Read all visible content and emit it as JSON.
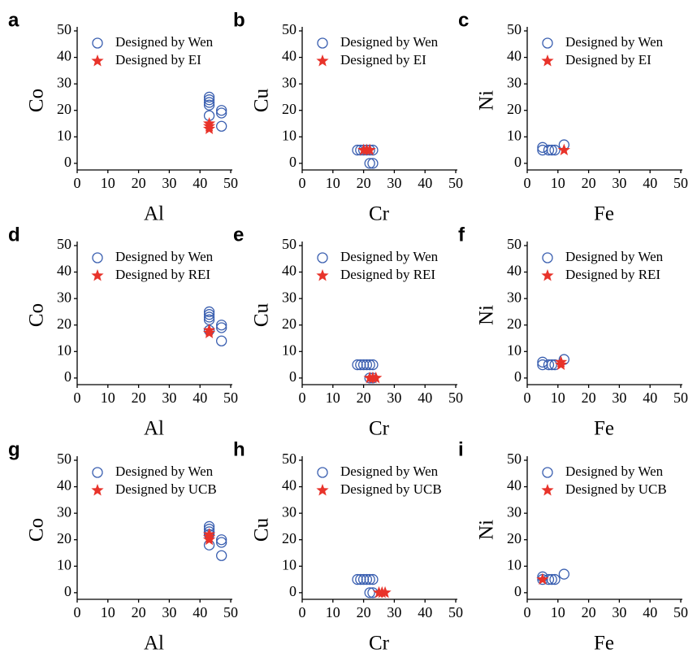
{
  "chart_data": [
    {
      "type": "scatter",
      "panel": "a",
      "xlabel": "Al",
      "ylabel": "Co",
      "xlim": [
        0,
        50
      ],
      "ylim": [
        -2.5,
        50
      ],
      "xticks": [
        0,
        10,
        20,
        30,
        40,
        50
      ],
      "yticks": [
        0,
        10,
        20,
        30,
        40,
        50
      ],
      "series": [
        {
          "name": "Designed by Wen",
          "color": "#3a5fb0",
          "marker": "circle",
          "x": [
            43,
            43,
            43,
            43,
            43,
            47,
            47,
            47
          ],
          "y": [
            25,
            24,
            23,
            22,
            18,
            20,
            19,
            14
          ]
        },
        {
          "name": "Designed by EI",
          "color": "#e8332a",
          "marker": "star",
          "x": [
            43,
            43,
            43
          ],
          "y": [
            15,
            14,
            13
          ]
        }
      ]
    },
    {
      "type": "scatter",
      "panel": "b",
      "xlabel": "Cr",
      "ylabel": "Cu",
      "xlim": [
        0,
        50
      ],
      "ylim": [
        -2.5,
        50
      ],
      "xticks": [
        0,
        10,
        20,
        30,
        40,
        50
      ],
      "yticks": [
        0,
        10,
        20,
        30,
        40,
        50
      ],
      "series": [
        {
          "name": "Designed by Wen",
          "color": "#3a5fb0",
          "marker": "circle",
          "x": [
            18,
            19,
            20,
            21,
            22,
            23,
            22,
            23
          ],
          "y": [
            5,
            5,
            5,
            5,
            5,
            5,
            0,
            0
          ]
        },
        {
          "name": "Designed by EI",
          "color": "#e8332a",
          "marker": "star",
          "x": [
            20,
            21,
            22
          ],
          "y": [
            5,
            5,
            5
          ]
        }
      ]
    },
    {
      "type": "scatter",
      "panel": "c",
      "xlabel": "Fe",
      "ylabel": "Ni",
      "xlim": [
        0,
        50
      ],
      "ylim": [
        -2.5,
        50
      ],
      "xticks": [
        0,
        10,
        20,
        30,
        40,
        50
      ],
      "yticks": [
        0,
        10,
        20,
        30,
        40,
        50
      ],
      "series": [
        {
          "name": "Designed by Wen",
          "color": "#3a5fb0",
          "marker": "circle",
          "x": [
            5,
            5,
            7,
            8,
            9,
            12
          ],
          "y": [
            6,
            5,
            5,
            5,
            5,
            7
          ]
        },
        {
          "name": "Designed by EI",
          "color": "#e8332a",
          "marker": "star",
          "x": [
            12
          ],
          "y": [
            5
          ]
        }
      ]
    },
    {
      "type": "scatter",
      "panel": "d",
      "xlabel": "Al",
      "ylabel": "Co",
      "xlim": [
        0,
        50
      ],
      "ylim": [
        -2.5,
        50
      ],
      "xticks": [
        0,
        10,
        20,
        30,
        40,
        50
      ],
      "yticks": [
        0,
        10,
        20,
        30,
        40,
        50
      ],
      "series": [
        {
          "name": "Designed by Wen",
          "color": "#3a5fb0",
          "marker": "circle",
          "x": [
            43,
            43,
            43,
            43,
            43,
            47,
            47,
            47
          ],
          "y": [
            25,
            24,
            23,
            22,
            18,
            20,
            19,
            14
          ]
        },
        {
          "name": "Designed by REI",
          "color": "#e8332a",
          "marker": "star",
          "x": [
            43,
            43
          ],
          "y": [
            17,
            18
          ]
        }
      ]
    },
    {
      "type": "scatter",
      "panel": "e",
      "xlabel": "Cr",
      "ylabel": "Cu",
      "xlim": [
        0,
        50
      ],
      "ylim": [
        -2.5,
        50
      ],
      "xticks": [
        0,
        10,
        20,
        30,
        40,
        50
      ],
      "yticks": [
        0,
        10,
        20,
        30,
        40,
        50
      ],
      "series": [
        {
          "name": "Designed by Wen",
          "color": "#3a5fb0",
          "marker": "circle",
          "x": [
            18,
            19,
            20,
            21,
            22,
            23,
            22,
            23
          ],
          "y": [
            5,
            5,
            5,
            5,
            5,
            5,
            0,
            0
          ]
        },
        {
          "name": "Designed by REI",
          "color": "#e8332a",
          "marker": "star",
          "x": [
            22,
            23,
            24
          ],
          "y": [
            0,
            0,
            0
          ]
        }
      ]
    },
    {
      "type": "scatter",
      "panel": "f",
      "xlabel": "Fe",
      "ylabel": "Ni",
      "xlim": [
        0,
        50
      ],
      "ylim": [
        -2.5,
        50
      ],
      "xticks": [
        0,
        10,
        20,
        30,
        40,
        50
      ],
      "yticks": [
        0,
        10,
        20,
        30,
        40,
        50
      ],
      "series": [
        {
          "name": "Designed by Wen",
          "color": "#3a5fb0",
          "marker": "circle",
          "x": [
            5,
            5,
            7,
            8,
            9,
            12
          ],
          "y": [
            6,
            5,
            5,
            5,
            5,
            7
          ]
        },
        {
          "name": "Designed by REI",
          "color": "#e8332a",
          "marker": "star",
          "x": [
            11,
            11
          ],
          "y": [
            5,
            6
          ]
        }
      ]
    },
    {
      "type": "scatter",
      "panel": "g",
      "xlabel": "Al",
      "ylabel": "Co",
      "xlim": [
        0,
        50
      ],
      "ylim": [
        -2.5,
        50
      ],
      "xticks": [
        0,
        10,
        20,
        30,
        40,
        50
      ],
      "yticks": [
        0,
        10,
        20,
        30,
        40,
        50
      ],
      "series": [
        {
          "name": "Designed by Wen",
          "color": "#3a5fb0",
          "marker": "circle",
          "x": [
            43,
            43,
            43,
            43,
            43,
            47,
            47,
            47
          ],
          "y": [
            25,
            24,
            23,
            22,
            18,
            20,
            19,
            14
          ]
        },
        {
          "name": "Designed by UCB",
          "color": "#e8332a",
          "marker": "star",
          "x": [
            43,
            43,
            43
          ],
          "y": [
            20,
            21,
            22
          ]
        }
      ]
    },
    {
      "type": "scatter",
      "panel": "h",
      "xlabel": "Cr",
      "ylabel": "Cu",
      "xlim": [
        0,
        50
      ],
      "ylim": [
        -2.5,
        50
      ],
      "xticks": [
        0,
        10,
        20,
        30,
        40,
        50
      ],
      "yticks": [
        0,
        10,
        20,
        30,
        40,
        50
      ],
      "series": [
        {
          "name": "Designed by Wen",
          "color": "#3a5fb0",
          "marker": "circle",
          "x": [
            18,
            19,
            20,
            21,
            22,
            23,
            22,
            23
          ],
          "y": [
            5,
            5,
            5,
            5,
            5,
            5,
            0,
            0
          ]
        },
        {
          "name": "Designed by UCB",
          "color": "#e8332a",
          "marker": "star",
          "x": [
            25,
            26,
            27
          ],
          "y": [
            0,
            0,
            0
          ]
        }
      ]
    },
    {
      "type": "scatter",
      "panel": "i",
      "xlabel": "Fe",
      "ylabel": "Ni",
      "xlim": [
        0,
        50
      ],
      "ylim": [
        -2.5,
        50
      ],
      "xticks": [
        0,
        10,
        20,
        30,
        40,
        50
      ],
      "yticks": [
        0,
        10,
        20,
        30,
        40,
        50
      ],
      "series": [
        {
          "name": "Designed by Wen",
          "color": "#3a5fb0",
          "marker": "circle",
          "x": [
            5,
            5,
            7,
            8,
            9,
            12
          ],
          "y": [
            6,
            5,
            5,
            5,
            5,
            7
          ]
        },
        {
          "name": "Designed by UCB",
          "color": "#e8332a",
          "marker": "star",
          "x": [
            5
          ],
          "y": [
            5
          ]
        }
      ]
    }
  ]
}
